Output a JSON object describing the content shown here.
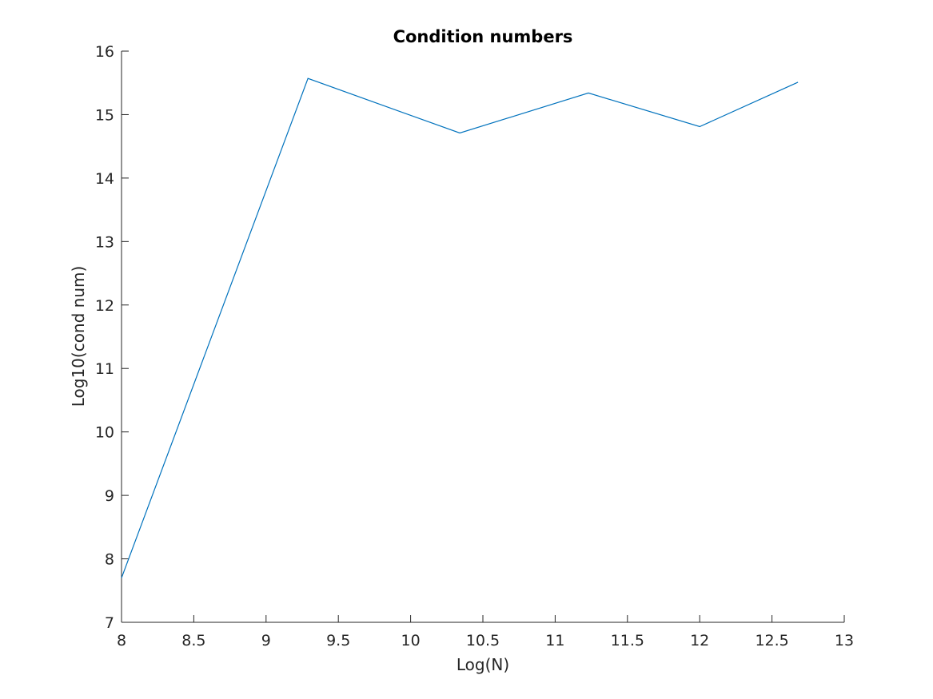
{
  "chart_data": {
    "type": "line",
    "title": "Condition numbers",
    "xlabel": "Log(N)",
    "ylabel": "Log10(cond num)",
    "xlim": [
      8,
      13
    ],
    "ylim": [
      7,
      16
    ],
    "x_ticks": [
      "8",
      "8.5",
      "9",
      "9.5",
      "10",
      "10.5",
      "11",
      "11.5",
      "12",
      "12.5",
      "13"
    ],
    "y_ticks": [
      "7",
      "8",
      "9",
      "10",
      "11",
      "12",
      "13",
      "14",
      "15",
      "16"
    ],
    "grid": false,
    "series": [
      {
        "color": "#0072BD",
        "x": [
          8.0,
          9.29,
          10.34,
          11.23,
          12.0,
          12.68
        ],
        "y": [
          7.7,
          15.57,
          14.71,
          15.34,
          14.81,
          15.51
        ]
      }
    ]
  }
}
